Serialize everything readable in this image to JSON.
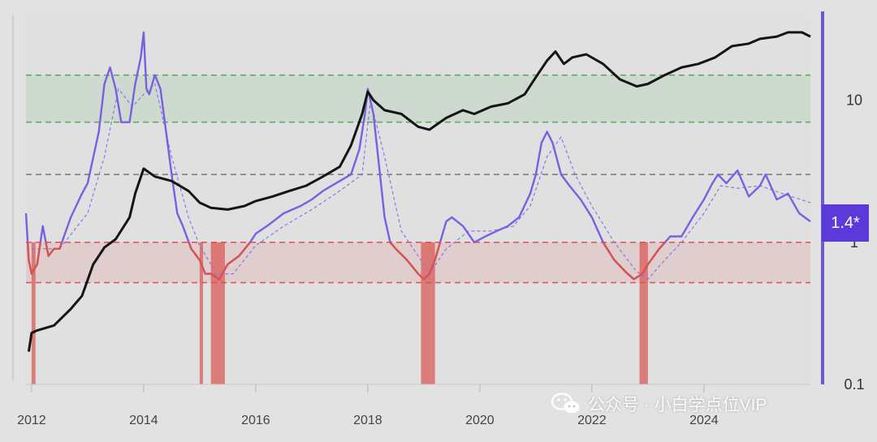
{
  "chart_data": {
    "type": "line",
    "title": "",
    "xlabel": "",
    "ylabel": "",
    "y_scale": "log",
    "xlim": [
      2011.9,
      2025.9
    ],
    "ylim": [
      0.1,
      40
    ],
    "y_ticks": [
      {
        "value": 10,
        "label": "10"
      },
      {
        "value": 1,
        "label": "1"
      },
      {
        "value": 0.1,
        "label": "0.1"
      }
    ],
    "x_ticks": [
      {
        "value": 2012,
        "label": "2012"
      },
      {
        "value": 2014,
        "label": "2014"
      },
      {
        "value": 2016,
        "label": "2016"
      },
      {
        "value": 2018,
        "label": "2018"
      },
      {
        "value": 2020,
        "label": "2020"
      },
      {
        "value": 2022,
        "label": "2022"
      },
      {
        "value": 2024,
        "label": "2024"
      }
    ],
    "current_value_label": "1.4*",
    "bands": [
      {
        "name": "green-zone",
        "y0": 7,
        "y1": 15,
        "color": "#56a85a"
      },
      {
        "name": "red-zone",
        "y0": 0.52,
        "y1": 1.0,
        "color": "#d9534f"
      }
    ],
    "reference_lines": [
      {
        "name": "green-upper",
        "y": 15,
        "color": "#56a85a"
      },
      {
        "name": "green-lower",
        "y": 7,
        "color": "#56a85a"
      },
      {
        "name": "neutral",
        "y": 3.0,
        "color": "#777777"
      },
      {
        "name": "red-upper",
        "y": 1.0,
        "color": "#d9534f"
      },
      {
        "name": "red-lower",
        "y": 0.52,
        "color": "#d9534f"
      }
    ],
    "red_signal_periods": [
      [
        2012.0,
        2012.07
      ],
      [
        2015.0,
        2015.06
      ],
      [
        2015.2,
        2015.45
      ],
      [
        2018.95,
        2019.2
      ],
      [
        2022.85,
        2023.0
      ]
    ],
    "series": [
      {
        "name": "price (black)",
        "color": "#151515",
        "x": [
          2011.95,
          2012.0,
          2012.1,
          2012.4,
          2012.7,
          2012.9,
          2013.1,
          2013.3,
          2013.5,
          2013.75,
          2013.85,
          2014.0,
          2014.2,
          2014.5,
          2014.8,
          2015.0,
          2015.2,
          2015.5,
          2015.8,
          2016.0,
          2016.3,
          2016.6,
          2016.9,
          2017.2,
          2017.5,
          2017.7,
          2017.9,
          2018.0,
          2018.1,
          2018.3,
          2018.6,
          2018.9,
          2019.1,
          2019.4,
          2019.7,
          2019.9,
          2020.2,
          2020.5,
          2020.8,
          2021.0,
          2021.2,
          2021.35,
          2021.5,
          2021.65,
          2021.9,
          2022.2,
          2022.5,
          2022.8,
          2023.0,
          2023.3,
          2023.6,
          2023.9,
          2024.2,
          2024.5,
          2024.8,
          2025.0,
          2025.3,
          2025.5,
          2025.75,
          2025.9
        ],
        "values": [
          0.17,
          0.23,
          0.24,
          0.26,
          0.34,
          0.42,
          0.7,
          0.92,
          1.05,
          1.5,
          2.2,
          3.3,
          2.9,
          2.7,
          2.3,
          1.9,
          1.75,
          1.7,
          1.8,
          1.95,
          2.1,
          2.3,
          2.5,
          2.9,
          3.4,
          4.8,
          8.0,
          11.5,
          10.0,
          8.5,
          8.0,
          6.5,
          6.2,
          7.5,
          8.5,
          8.0,
          9.0,
          9.5,
          11.0,
          14.5,
          19.0,
          22.0,
          18.0,
          20.0,
          21.0,
          18.0,
          14.0,
          12.5,
          13.0,
          15.0,
          17.0,
          18.0,
          20.0,
          24.0,
          25.0,
          27.0,
          28.0,
          30.0,
          30.0,
          28.0
        ]
      },
      {
        "name": "oscillator (purple)",
        "color": "#7a5fe3",
        "x": [
          2011.9,
          2011.95,
          2012.0,
          2012.1,
          2012.2,
          2012.3,
          2012.4,
          2012.5,
          2012.7,
          2012.9,
          2013.0,
          2013.2,
          2013.3,
          2013.4,
          2013.5,
          2013.6,
          2013.75,
          2013.85,
          2013.95,
          2014.0,
          2014.05,
          2014.1,
          2014.2,
          2014.3,
          2014.4,
          2014.5,
          2014.6,
          2014.7,
          2014.85,
          2015.0,
          2015.1,
          2015.2,
          2015.35,
          2015.5,
          2015.7,
          2015.9,
          2016.0,
          2016.2,
          2016.5,
          2016.8,
          2017.0,
          2017.2,
          2017.5,
          2017.7,
          2017.85,
          2017.95,
          2018.0,
          2018.1,
          2018.2,
          2018.3,
          2018.4,
          2018.5,
          2018.7,
          2018.9,
          2019.0,
          2019.1,
          2019.2,
          2019.4,
          2019.5,
          2019.7,
          2019.9,
          2020.1,
          2020.3,
          2020.5,
          2020.7,
          2020.9,
          2021.0,
          2021.1,
          2021.2,
          2021.3,
          2021.45,
          2021.6,
          2021.8,
          2022.0,
          2022.2,
          2022.4,
          2022.6,
          2022.75,
          2022.9,
          2023.0,
          2023.2,
          2023.4,
          2023.6,
          2023.8,
          2024.0,
          2024.15,
          2024.25,
          2024.4,
          2024.6,
          2024.8,
          2025.0,
          2025.1,
          2025.3,
          2025.5,
          2025.7,
          2025.9
        ],
        "values": [
          1.6,
          0.75,
          0.6,
          0.7,
          1.3,
          0.8,
          0.9,
          0.9,
          1.5,
          2.2,
          2.6,
          6.0,
          13.0,
          17.0,
          12.0,
          7.0,
          7.0,
          13.0,
          20.0,
          30.0,
          12.0,
          11.0,
          15.0,
          12.0,
          6.0,
          3.0,
          1.6,
          1.3,
          0.9,
          0.75,
          0.6,
          0.6,
          0.55,
          0.7,
          0.8,
          1.0,
          1.15,
          1.3,
          1.6,
          1.8,
          2.0,
          2.3,
          2.7,
          3.0,
          4.5,
          8.0,
          12.0,
          8.0,
          3.5,
          1.5,
          1.0,
          0.9,
          0.75,
          0.6,
          0.55,
          0.6,
          0.75,
          1.4,
          1.5,
          1.3,
          1.0,
          1.1,
          1.2,
          1.3,
          1.5,
          2.2,
          3.0,
          5.0,
          6.0,
          5.0,
          3.0,
          2.5,
          2.0,
          1.5,
          1.0,
          0.75,
          0.62,
          0.55,
          0.6,
          0.7,
          0.9,
          1.1,
          1.1,
          1.5,
          2.0,
          2.6,
          3.0,
          2.6,
          3.2,
          2.1,
          2.5,
          3.0,
          2.0,
          2.2,
          1.6,
          1.4
        ]
      },
      {
        "name": "oscillator moving average (dashed)",
        "color": "#8a76e6",
        "x": [
          2012.0,
          2012.5,
          2013.0,
          2013.3,
          2013.55,
          2013.8,
          2014.0,
          2014.2,
          2014.5,
          2014.8,
          2015.0,
          2015.3,
          2015.6,
          2016.0,
          2016.5,
          2017.0,
          2017.5,
          2017.9,
          2018.05,
          2018.3,
          2018.6,
          2018.9,
          2019.1,
          2019.4,
          2019.8,
          2020.2,
          2020.6,
          2020.9,
          2021.2,
          2021.45,
          2021.7,
          2022.0,
          2022.4,
          2022.8,
          2023.0,
          2023.3,
          2023.6,
          2024.0,
          2024.3,
          2024.6,
          2025.0,
          2025.4,
          2025.9
        ],
        "values": [
          0.9,
          0.9,
          1.6,
          4.0,
          12.0,
          9.0,
          11.0,
          13.0,
          4.0,
          1.5,
          0.95,
          0.6,
          0.6,
          0.95,
          1.3,
          1.7,
          2.3,
          3.0,
          10.0,
          4.0,
          1.2,
          0.8,
          0.6,
          0.9,
          1.2,
          1.2,
          1.3,
          1.8,
          4.0,
          5.5,
          3.0,
          1.8,
          1.0,
          0.62,
          0.55,
          0.75,
          1.0,
          1.6,
          2.5,
          2.4,
          2.5,
          2.2,
          1.9
        ]
      }
    ]
  },
  "watermark": {
    "icon": "wechat-icon",
    "text": "公众号 · 小白学点位VIP"
  }
}
